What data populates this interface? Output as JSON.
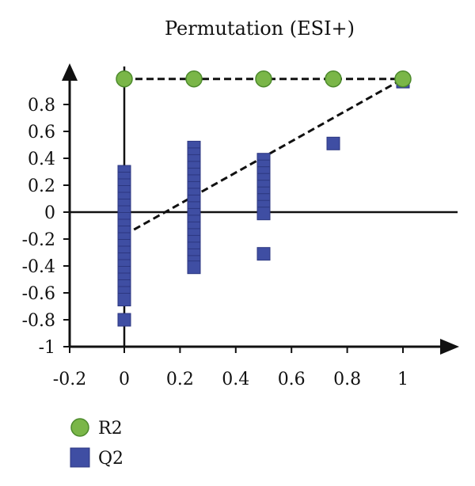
{
  "chart_data": {
    "type": "scatter",
    "title": "Permutation (ESI+)",
    "xlabel": "",
    "ylabel": "",
    "xlim": [
      -0.2,
      1.2
    ],
    "ylim": [
      -1,
      1.0
    ],
    "x_ticks": [
      -0.2,
      0,
      0.2,
      0.4,
      0.6,
      0.8,
      1
    ],
    "x_tick_labels": [
      "-0.2",
      "0",
      "0.2",
      "0.4",
      "0.6",
      "0.8",
      "1"
    ],
    "y_ticks": [
      -1,
      -0.8,
      -0.6,
      -0.4,
      -0.2,
      0,
      0.2,
      0.4,
      0.6,
      0.8
    ],
    "y_tick_labels": [
      "-1",
      "-0.8",
      "-0.6",
      "-0.4",
      "-0.2",
      "0",
      "0.2",
      "0.4",
      "0.6",
      "0.8"
    ],
    "grid": false,
    "legend_position": "bottom-left",
    "series": [
      {
        "name": "R2",
        "marker": "circle",
        "color": "#7ab648",
        "points": [
          [
            0,
            0.99
          ],
          [
            0.25,
            0.99
          ],
          [
            0.5,
            0.99
          ],
          [
            0.75,
            0.99
          ],
          [
            1,
            0.99
          ]
        ],
        "trendline": [
          [
            0,
            0.99
          ],
          [
            1,
            0.99
          ]
        ]
      },
      {
        "name": "Q2",
        "marker": "square",
        "color": "#3f4ea3",
        "points": [
          [
            0,
            0.3
          ],
          [
            0,
            0.25
          ],
          [
            0,
            0.2
          ],
          [
            0,
            0.15
          ],
          [
            0,
            0.1
          ],
          [
            0,
            0.05
          ],
          [
            0,
            0.0
          ],
          [
            0,
            -0.05
          ],
          [
            0,
            -0.1
          ],
          [
            0,
            -0.15
          ],
          [
            0,
            -0.2
          ],
          [
            0,
            -0.25
          ],
          [
            0,
            -0.3
          ],
          [
            0,
            -0.35
          ],
          [
            0,
            -0.4
          ],
          [
            0,
            -0.45
          ],
          [
            0,
            -0.5
          ],
          [
            0,
            -0.55
          ],
          [
            0,
            -0.6
          ],
          [
            0,
            -0.65
          ],
          [
            0,
            -0.8
          ],
          [
            0.25,
            0.48
          ],
          [
            0.25,
            0.43
          ],
          [
            0.25,
            0.38
          ],
          [
            0.25,
            0.33
          ],
          [
            0.25,
            0.28
          ],
          [
            0.25,
            0.23
          ],
          [
            0.25,
            0.18
          ],
          [
            0.25,
            0.13
          ],
          [
            0.25,
            0.08
          ],
          [
            0.25,
            0.03
          ],
          [
            0.25,
            -0.02
          ],
          [
            0.25,
            -0.07
          ],
          [
            0.25,
            -0.12
          ],
          [
            0.25,
            -0.17
          ],
          [
            0.25,
            -0.22
          ],
          [
            0.25,
            -0.27
          ],
          [
            0.25,
            -0.32
          ],
          [
            0.25,
            -0.37
          ],
          [
            0.25,
            -0.41
          ],
          [
            0.5,
            0.39
          ],
          [
            0.5,
            0.34
          ],
          [
            0.5,
            0.29
          ],
          [
            0.5,
            0.24
          ],
          [
            0.5,
            0.19
          ],
          [
            0.5,
            0.14
          ],
          [
            0.5,
            0.09
          ],
          [
            0.5,
            0.04
          ],
          [
            0.5,
            -0.01
          ],
          [
            0.5,
            -0.31
          ],
          [
            0.75,
            0.51
          ],
          [
            1,
            0.97
          ]
        ],
        "trendline": [
          [
            0,
            -0.17
          ],
          [
            1,
            0.99
          ]
        ]
      }
    ]
  }
}
